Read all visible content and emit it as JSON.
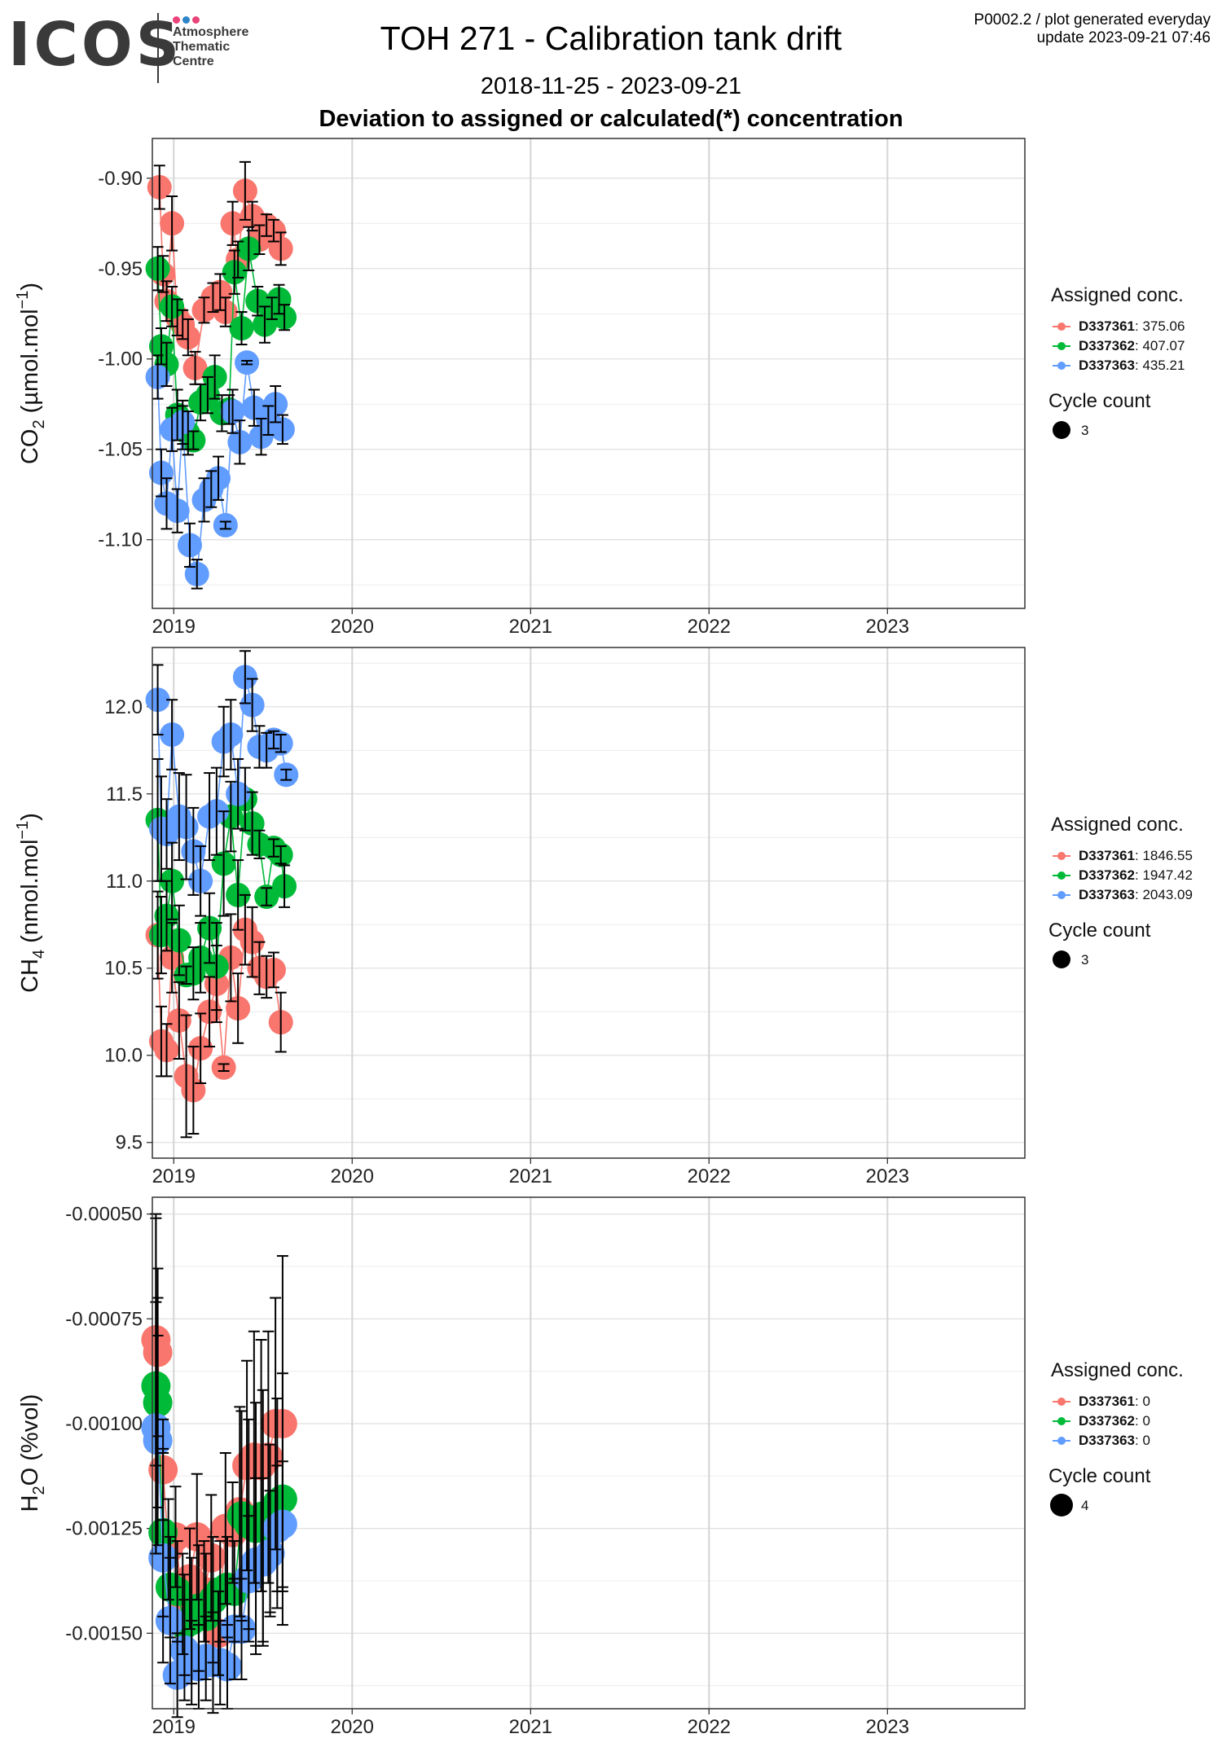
{
  "header": {
    "logo_text": "ICOS",
    "logo_subtitle": [
      "Atmosphere",
      "Thematic",
      "Centre"
    ],
    "logo_dot_colors": [
      "#e8447a",
      "#2e84c6",
      "#e8447a"
    ],
    "title": "TOH 271 - Calibration tank drift",
    "date_range": "2018-11-25 - 2023-09-21",
    "subtitle": "Deviation to assigned or calculated(*) concentration",
    "corner_line1": "P0002.2 / plot generated everyday",
    "corner_line2": "update  2023-09-21 07:46"
  },
  "colors": {
    "D337361": "#f8766d",
    "D337362": "#00ba38",
    "D337363": "#619cff"
  },
  "chart_data": [
    {
      "type": "scatter",
      "ylabel_main": "CO",
      "ylabel_sub": "2",
      "ylabel_unit": " (µmol.mol",
      "ylabel_sup": "−1",
      "ylabel_close": ")",
      "xlim": [
        2018.88,
        2023.77
      ],
      "ylim": [
        -1.138,
        -0.878
      ],
      "yticks": [
        -0.9,
        -0.95,
        -1.0,
        -1.05,
        -1.1
      ],
      "ytick_labels": [
        "-0.90",
        "-0.95",
        "-1.00",
        "-1.05",
        "-1.10"
      ],
      "xticks": [
        2019,
        2020,
        2021,
        2022,
        2023
      ],
      "xtick_labels": [
        "2019",
        "2020",
        "2021",
        "2022",
        "2023"
      ],
      "legend_title": "Assigned conc.",
      "legend": [
        {
          "name": "D337361",
          "value": ": 375.06"
        },
        {
          "name": "D337362",
          "value": ": 407.07"
        },
        {
          "name": "D337363",
          "value": ": 435.21"
        }
      ],
      "size_title": "Cycle count",
      "size_value": "3",
      "series": [
        {
          "name": "D337361",
          "x": [
            2018.92,
            2018.94,
            2018.96,
            2018.99,
            2019.02,
            2019.05,
            2019.08,
            2019.12,
            2019.17,
            2019.22,
            2019.26,
            2019.29,
            2019.33,
            2019.36,
            2019.4,
            2019.44,
            2019.48,
            2019.52,
            2019.56,
            2019.6
          ],
          "y": [
            -0.905,
            -0.953,
            -0.968,
            -0.925,
            -0.977,
            -0.981,
            -0.988,
            -1.005,
            -0.973,
            -0.966,
            -0.963,
            -0.974,
            -0.925,
            -0.945,
            -0.907,
            -0.921,
            -0.934,
            -0.926,
            -0.929,
            -0.939
          ],
          "err": [
            0.012,
            0.01,
            0.011,
            0.015,
            0.01,
            0.008,
            0.01,
            0.009,
            0.007,
            0.008,
            0.01,
            0.008,
            0.012,
            0.01,
            0.016,
            0.008,
            0.008,
            0.006,
            0.006,
            0.009
          ]
        },
        {
          "name": "D337362",
          "x": [
            2018.91,
            2018.93,
            2018.96,
            2018.99,
            2019.02,
            2019.05,
            2019.08,
            2019.11,
            2019.15,
            2019.19,
            2019.23,
            2019.27,
            2019.31,
            2019.34,
            2019.38,
            2019.42,
            2019.47,
            2019.51,
            2019.55,
            2019.59,
            2019.62
          ],
          "y": [
            -0.95,
            -0.993,
            -1.003,
            -0.971,
            -1.031,
            -1.038,
            -1.041,
            -1.045,
            -1.024,
            -1.02,
            -1.01,
            -1.03,
            -1.028,
            -0.952,
            -0.983,
            -0.939,
            -0.968,
            -0.981,
            -0.972,
            -0.967,
            -0.977
          ],
          "err": [
            0.012,
            0.01,
            0.012,
            0.011,
            0.014,
            0.012,
            0.012,
            0.005,
            0.01,
            0.01,
            0.012,
            0.01,
            0.008,
            0.012,
            0.009,
            0.012,
            0.008,
            0.01,
            0.006,
            0.008,
            0.007
          ]
        },
        {
          "name": "D337363",
          "x": [
            2018.91,
            2018.93,
            2018.96,
            2018.99,
            2019.02,
            2019.05,
            2019.09,
            2019.13,
            2019.17,
            2019.21,
            2019.25,
            2019.29,
            2019.33,
            2019.37,
            2019.41,
            2019.45,
            2019.49,
            2019.53,
            2019.57,
            2019.61
          ],
          "y": [
            -1.01,
            -1.063,
            -1.08,
            -1.039,
            -1.084,
            -1.035,
            -1.103,
            -1.119,
            -1.078,
            -1.072,
            -1.066,
            -1.092,
            -1.029,
            -1.046,
            -1.002,
            -1.027,
            -1.043,
            -1.034,
            -1.025,
            -1.039
          ],
          "err": [
            0.012,
            0.013,
            0.014,
            0.012,
            0.012,
            0.012,
            0.012,
            0.008,
            0.012,
            0.01,
            0.012,
            0.002,
            0.012,
            0.012,
            0.001,
            0.01,
            0.01,
            0.008,
            0.01,
            0.008
          ]
        }
      ]
    },
    {
      "type": "scatter",
      "ylabel_main": "CH",
      "ylabel_sub": "4",
      "ylabel_unit": " (nmol.mol",
      "ylabel_sup": "−1",
      "ylabel_close": ")",
      "xlim": [
        2018.88,
        2023.77
      ],
      "ylim": [
        9.41,
        12.34
      ],
      "yticks": [
        12.0,
        11.5,
        11.0,
        10.5,
        10.0,
        9.5
      ],
      "ytick_labels": [
        "12.0",
        "11.5",
        "11.0",
        "10.5",
        "10.0",
        "9.5"
      ],
      "xticks": [
        2019,
        2020,
        2021,
        2022,
        2023
      ],
      "xtick_labels": [
        "2019",
        "2020",
        "2021",
        "2022",
        "2023"
      ],
      "legend_title": "Assigned conc.",
      "legend": [
        {
          "name": "D337361",
          "value": ": 1846.55"
        },
        {
          "name": "D337362",
          "value": ": 1947.42"
        },
        {
          "name": "D337363",
          "value": ": 2043.09"
        }
      ],
      "size_title": "Cycle count",
      "size_value": "3",
      "series": [
        {
          "name": "D337361",
          "x": [
            2018.91,
            2018.93,
            2018.96,
            2018.99,
            2019.03,
            2019.07,
            2019.11,
            2019.15,
            2019.2,
            2019.24,
            2019.28,
            2019.32,
            2019.36,
            2019.4,
            2019.44,
            2019.48,
            2019.52,
            2019.56,
            2019.6
          ],
          "y": [
            10.69,
            10.08,
            10.03,
            10.56,
            10.2,
            9.88,
            9.8,
            10.04,
            10.25,
            10.41,
            9.93,
            10.56,
            10.27,
            10.72,
            10.65,
            10.5,
            10.45,
            10.49,
            10.19
          ],
          "err": [
            0.25,
            0.2,
            0.15,
            0.2,
            0.22,
            0.35,
            0.25,
            0.2,
            0.2,
            0.22,
            0.02,
            0.25,
            0.2,
            0.2,
            0.2,
            0.15,
            0.12,
            0.1,
            0.17
          ]
        },
        {
          "name": "D337362",
          "x": [
            2018.91,
            2018.93,
            2018.96,
            2018.99,
            2019.03,
            2019.07,
            2019.11,
            2019.15,
            2019.2,
            2019.24,
            2019.28,
            2019.32,
            2019.36,
            2019.4,
            2019.44,
            2019.48,
            2019.52,
            2019.56,
            2019.6,
            2019.62
          ],
          "y": [
            11.35,
            10.69,
            10.8,
            11.0,
            10.66,
            10.46,
            10.47,
            10.56,
            10.73,
            10.51,
            11.1,
            11.37,
            10.92,
            11.47,
            11.33,
            11.21,
            10.91,
            11.19,
            11.15,
            10.97
          ],
          "err": [
            0.35,
            0.22,
            0.2,
            0.22,
            0.2,
            0.05,
            0.15,
            0.2,
            0.2,
            0.25,
            0.3,
            0.2,
            0.2,
            0.18,
            0.18,
            0.08,
            0.05,
            0.05,
            0.05,
            0.12
          ]
        },
        {
          "name": "D337363",
          "x": [
            2018.91,
            2018.93,
            2018.96,
            2018.99,
            2019.03,
            2019.07,
            2019.11,
            2019.15,
            2019.2,
            2019.24,
            2019.28,
            2019.32,
            2019.36,
            2019.4,
            2019.44,
            2019.48,
            2019.52,
            2019.56,
            2019.6,
            2019.63
          ],
          "y": [
            12.04,
            11.3,
            11.27,
            11.84,
            11.37,
            11.31,
            11.17,
            11.0,
            11.37,
            11.4,
            11.8,
            11.84,
            11.5,
            12.17,
            12.01,
            11.77,
            11.75,
            11.81,
            11.79,
            11.61
          ],
          "err": [
            0.2,
            0.3,
            0.2,
            0.2,
            0.25,
            0.3,
            0.25,
            0.2,
            0.25,
            0.25,
            0.2,
            0.2,
            0.2,
            0.15,
            0.15,
            0.12,
            0.1,
            0.05,
            0.05,
            0.03
          ]
        }
      ]
    },
    {
      "type": "scatter",
      "ylabel_main": "H",
      "ylabel_sub": "2",
      "ylabel_unit": "O (%vol)",
      "ylabel_sup": "",
      "ylabel_close": "",
      "xlim": [
        2018.88,
        2023.77
      ],
      "ylim": [
        -0.00168,
        -0.00046
      ],
      "yticks": [
        -0.0005,
        -0.00075,
        -0.001,
        -0.00125,
        -0.0015
      ],
      "ytick_labels": [
        "-0.00050",
        "-0.00075",
        "-0.00100",
        "-0.00125",
        "-0.00150"
      ],
      "xticks": [
        2019,
        2020,
        2021,
        2022,
        2023
      ],
      "xtick_labels": [
        "2019",
        "2020",
        "2021",
        "2022",
        "2023"
      ],
      "legend_title": "Assigned conc.",
      "legend": [
        {
          "name": "D337361",
          "value": ": 0"
        },
        {
          "name": "D337362",
          "value": ": 0"
        },
        {
          "name": "D337363",
          "value": ": 0"
        }
      ],
      "size_title": "Cycle count",
      "size_value": "4",
      "series": [
        {
          "name": "D337361",
          "x": [
            2018.9,
            2018.91,
            2018.94,
            2018.97,
            2019.01,
            2019.05,
            2019.09,
            2019.13,
            2019.17,
            2019.21,
            2019.25,
            2019.29,
            2019.33,
            2019.37,
            2019.41,
            2019.45,
            2019.49,
            2019.53,
            2019.57,
            2019.61
          ],
          "y": [
            -0.0008,
            -0.00083,
            -0.00111,
            -0.0013,
            -0.00127,
            -0.00143,
            -0.00137,
            -0.00127,
            -0.0014,
            -0.00132,
            -0.0015,
            -0.00125,
            -0.00126,
            -0.00121,
            -0.0011,
            -0.00108,
            -0.0011,
            -0.00108,
            -0.001,
            -0.001
          ],
          "err": [
            0.0003,
            0.0002,
            0.00012,
            0.00012,
            0.00012,
            0.00012,
            0.00012,
            0.00015,
            0.00012,
            0.00015,
            0.0001,
            0.00018,
            0.00012,
            0.00025,
            0.00025,
            0.0003,
            0.0003,
            0.0003,
            0.0003,
            0.0004
          ]
        },
        {
          "name": "D337362",
          "x": [
            2018.9,
            2018.91,
            2018.94,
            2018.98,
            2019.02,
            2019.06,
            2019.1,
            2019.14,
            2019.18,
            2019.22,
            2019.26,
            2019.3,
            2019.34,
            2019.38,
            2019.42,
            2019.46,
            2019.5,
            2019.54,
            2019.58,
            2019.61
          ],
          "y": [
            -0.00091,
            -0.00095,
            -0.00126,
            -0.00139,
            -0.0014,
            -0.00148,
            -0.00147,
            -0.00144,
            -0.00146,
            -0.00142,
            -0.0014,
            -0.00139,
            -0.0014,
            -0.00122,
            -0.00124,
            -0.00125,
            -0.00122,
            -0.00125,
            -0.00119,
            -0.00118
          ],
          "err": [
            0.0004,
            0.00025,
            0.0002,
            0.00012,
            0.00012,
            0.00012,
            0.00015,
            0.00015,
            0.00015,
            0.00015,
            0.00012,
            0.00012,
            0.00012,
            0.00025,
            0.00025,
            0.0003,
            0.0003,
            0.0002,
            0.00025,
            0.0003
          ]
        },
        {
          "name": "D337363",
          "x": [
            2018.9,
            2018.91,
            2018.94,
            2018.98,
            2019.02,
            2019.06,
            2019.1,
            2019.14,
            2019.18,
            2019.22,
            2019.26,
            2019.3,
            2019.34,
            2019.38,
            2019.42,
            2019.46,
            2019.5,
            2019.54,
            2019.58,
            2019.61
          ],
          "y": [
            -0.00101,
            -0.00104,
            -0.00132,
            -0.00147,
            -0.0016,
            -0.00154,
            -0.00157,
            -0.00158,
            -0.00156,
            -0.00157,
            -0.00157,
            -0.00158,
            -0.00149,
            -0.00149,
            -0.00137,
            -0.00133,
            -0.00133,
            -0.00131,
            -0.00125,
            -0.00124
          ],
          "err": [
            0.0003,
            0.00025,
            0.00025,
            0.00015,
            0.0001,
            0.00012,
            0.0001,
            0.0001,
            0.0001,
            0.00012,
            0.0001,
            0.0001,
            0.00012,
            0.00012,
            0.00015,
            0.0002,
            0.0002,
            0.00015,
            0.00015,
            0.00015
          ]
        }
      ]
    }
  ]
}
